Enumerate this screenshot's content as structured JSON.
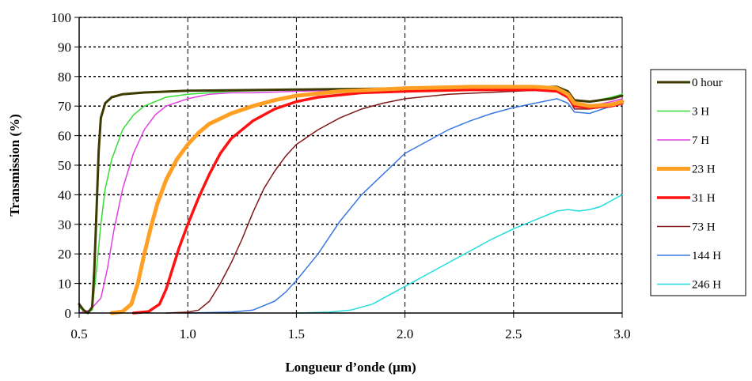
{
  "chart_data": {
    "type": "line",
    "title": "",
    "xlabel": "Longueur d’onde (µm)",
    "ylabel": "Transmission (%)",
    "xlim": [
      0.5,
      3.0
    ],
    "ylim": [
      0,
      100
    ],
    "xticks": [
      0.5,
      1.0,
      1.5,
      2.0,
      2.5,
      3.0
    ],
    "xtick_labels": [
      "0.5",
      "1.0",
      "1.5",
      "2.0",
      "2.5",
      "3.0"
    ],
    "yticks": [
      0,
      10,
      20,
      30,
      40,
      50,
      60,
      70,
      80,
      90,
      100
    ],
    "ytick_labels": [
      "0",
      "10",
      "20",
      "30",
      "40",
      "50",
      "60",
      "70",
      "80",
      "90",
      "100"
    ],
    "grid": {
      "x": "dashed",
      "y": "dotted"
    },
    "legend_position": "right",
    "series": [
      {
        "name": "0 hour",
        "color": "#3d3a00",
        "width": 3,
        "points": [
          [
            0.5,
            3
          ],
          [
            0.52,
            1
          ],
          [
            0.54,
            0
          ],
          [
            0.56,
            2
          ],
          [
            0.57,
            15
          ],
          [
            0.58,
            35
          ],
          [
            0.59,
            55
          ],
          [
            0.6,
            66
          ],
          [
            0.62,
            71
          ],
          [
            0.65,
            73
          ],
          [
            0.7,
            74
          ],
          [
            0.8,
            74.6
          ],
          [
            1.0,
            75.2
          ],
          [
            1.5,
            75.6
          ],
          [
            2.0,
            76
          ],
          [
            2.5,
            76.3
          ],
          [
            2.7,
            76.5
          ],
          [
            2.75,
            75
          ],
          [
            2.78,
            72
          ],
          [
            2.85,
            71.5
          ],
          [
            2.95,
            72.5
          ],
          [
            3.0,
            73.5
          ]
        ]
      },
      {
        "name": "3 H",
        "color": "#33dd33",
        "width": 1.5,
        "points": [
          [
            0.5,
            2
          ],
          [
            0.53,
            0
          ],
          [
            0.56,
            1
          ],
          [
            0.58,
            15
          ],
          [
            0.6,
            30
          ],
          [
            0.62,
            42
          ],
          [
            0.65,
            52
          ],
          [
            0.7,
            62
          ],
          [
            0.75,
            67
          ],
          [
            0.8,
            70
          ],
          [
            0.9,
            73
          ],
          [
            1.0,
            74
          ],
          [
            1.2,
            75
          ],
          [
            1.5,
            75.5
          ],
          [
            2.0,
            76
          ],
          [
            2.5,
            76.2
          ],
          [
            2.7,
            76.3
          ],
          [
            2.75,
            75
          ],
          [
            2.78,
            72
          ],
          [
            2.85,
            71.5
          ],
          [
            2.95,
            73
          ],
          [
            3.0,
            74
          ]
        ]
      },
      {
        "name": "7 H",
        "color": "#e040e0",
        "width": 1.5,
        "points": [
          [
            0.5,
            0
          ],
          [
            0.55,
            1
          ],
          [
            0.6,
            5
          ],
          [
            0.63,
            15
          ],
          [
            0.66,
            28
          ],
          [
            0.7,
            42
          ],
          [
            0.75,
            54
          ],
          [
            0.8,
            62
          ],
          [
            0.85,
            67
          ],
          [
            0.9,
            70
          ],
          [
            1.0,
            72.5
          ],
          [
            1.1,
            74
          ],
          [
            1.2,
            74.5
          ],
          [
            1.3,
            74.5
          ],
          [
            1.5,
            75
          ],
          [
            2.0,
            76
          ],
          [
            2.5,
            76
          ],
          [
            2.7,
            76
          ],
          [
            2.75,
            74.5
          ],
          [
            2.78,
            71
          ],
          [
            2.85,
            70
          ],
          [
            2.95,
            71.5
          ],
          [
            3.0,
            72.5
          ]
        ]
      },
      {
        "name": "23 H",
        "color": "#ffa024",
        "width": 5,
        "points": [
          [
            0.65,
            0
          ],
          [
            0.7,
            0.5
          ],
          [
            0.74,
            3
          ],
          [
            0.77,
            10
          ],
          [
            0.8,
            20
          ],
          [
            0.83,
            29
          ],
          [
            0.86,
            37
          ],
          [
            0.9,
            45
          ],
          [
            0.95,
            52
          ],
          [
            1.0,
            57
          ],
          [
            1.05,
            61
          ],
          [
            1.1,
            64
          ],
          [
            1.2,
            67.5
          ],
          [
            1.3,
            70
          ],
          [
            1.4,
            72
          ],
          [
            1.5,
            73.5
          ],
          [
            1.7,
            75
          ],
          [
            2.0,
            76
          ],
          [
            2.3,
            76.5
          ],
          [
            2.6,
            76.5
          ],
          [
            2.7,
            76
          ],
          [
            2.75,
            74
          ],
          [
            2.78,
            71
          ],
          [
            2.85,
            70
          ],
          [
            2.95,
            70.5
          ],
          [
            3.0,
            71.5
          ]
        ]
      },
      {
        "name": "31 H",
        "color": "#ff1111",
        "width": 3.5,
        "points": [
          [
            0.75,
            0
          ],
          [
            0.82,
            0.5
          ],
          [
            0.87,
            3
          ],
          [
            0.9,
            8
          ],
          [
            0.93,
            15
          ],
          [
            0.96,
            22
          ],
          [
            1.0,
            30
          ],
          [
            1.05,
            39
          ],
          [
            1.1,
            47
          ],
          [
            1.15,
            54
          ],
          [
            1.2,
            59
          ],
          [
            1.3,
            65
          ],
          [
            1.4,
            69
          ],
          [
            1.5,
            71.5
          ],
          [
            1.6,
            73
          ],
          [
            1.8,
            74.5
          ],
          [
            2.0,
            75
          ],
          [
            2.3,
            75.5
          ],
          [
            2.6,
            75.5
          ],
          [
            2.7,
            75
          ],
          [
            2.75,
            73
          ],
          [
            2.78,
            70
          ],
          [
            2.85,
            69.5
          ],
          [
            2.95,
            70
          ],
          [
            3.0,
            71
          ]
        ]
      },
      {
        "name": "73 H",
        "color": "#801818",
        "width": 1.5,
        "points": [
          [
            0.9,
            0
          ],
          [
            1.0,
            0.3
          ],
          [
            1.05,
            1
          ],
          [
            1.1,
            4
          ],
          [
            1.15,
            10
          ],
          [
            1.2,
            17
          ],
          [
            1.25,
            25
          ],
          [
            1.3,
            34
          ],
          [
            1.35,
            42
          ],
          [
            1.4,
            48
          ],
          [
            1.45,
            53
          ],
          [
            1.5,
            57
          ],
          [
            1.6,
            62
          ],
          [
            1.7,
            66
          ],
          [
            1.8,
            69
          ],
          [
            1.9,
            71
          ],
          [
            2.0,
            72.5
          ],
          [
            2.2,
            74
          ],
          [
            2.5,
            75
          ],
          [
            2.65,
            75.5
          ],
          [
            2.7,
            75.5
          ],
          [
            2.75,
            73
          ],
          [
            2.78,
            69
          ],
          [
            2.85,
            69
          ],
          [
            2.95,
            70
          ],
          [
            3.0,
            72
          ]
        ]
      },
      {
        "name": "144 H",
        "color": "#3a78e0",
        "width": 1.5,
        "points": [
          [
            1.0,
            0
          ],
          [
            1.2,
            0.3
          ],
          [
            1.3,
            1
          ],
          [
            1.4,
            4
          ],
          [
            1.45,
            7
          ],
          [
            1.5,
            11
          ],
          [
            1.6,
            20
          ],
          [
            1.7,
            31
          ],
          [
            1.8,
            40
          ],
          [
            1.9,
            47
          ],
          [
            2.0,
            54
          ],
          [
            2.1,
            58
          ],
          [
            2.2,
            62
          ],
          [
            2.3,
            65
          ],
          [
            2.4,
            67.5
          ],
          [
            2.5,
            69.5
          ],
          [
            2.6,
            71
          ],
          [
            2.7,
            72.5
          ],
          [
            2.75,
            71
          ],
          [
            2.78,
            68
          ],
          [
            2.85,
            67.5
          ],
          [
            2.95,
            70
          ],
          [
            3.0,
            72
          ]
        ]
      },
      {
        "name": "246 H",
        "color": "#22dddd",
        "width": 1.5,
        "points": [
          [
            1.5,
            0
          ],
          [
            1.65,
            0.3
          ],
          [
            1.75,
            1
          ],
          [
            1.85,
            3
          ],
          [
            1.95,
            7
          ],
          [
            2.0,
            9
          ],
          [
            2.1,
            13
          ],
          [
            2.2,
            17
          ],
          [
            2.3,
            21
          ],
          [
            2.4,
            25
          ],
          [
            2.5,
            28.5
          ],
          [
            2.6,
            31.5
          ],
          [
            2.7,
            34.5
          ],
          [
            2.75,
            35
          ],
          [
            2.8,
            34.5
          ],
          [
            2.85,
            35
          ],
          [
            2.9,
            36
          ],
          [
            3.0,
            40
          ]
        ]
      }
    ]
  }
}
